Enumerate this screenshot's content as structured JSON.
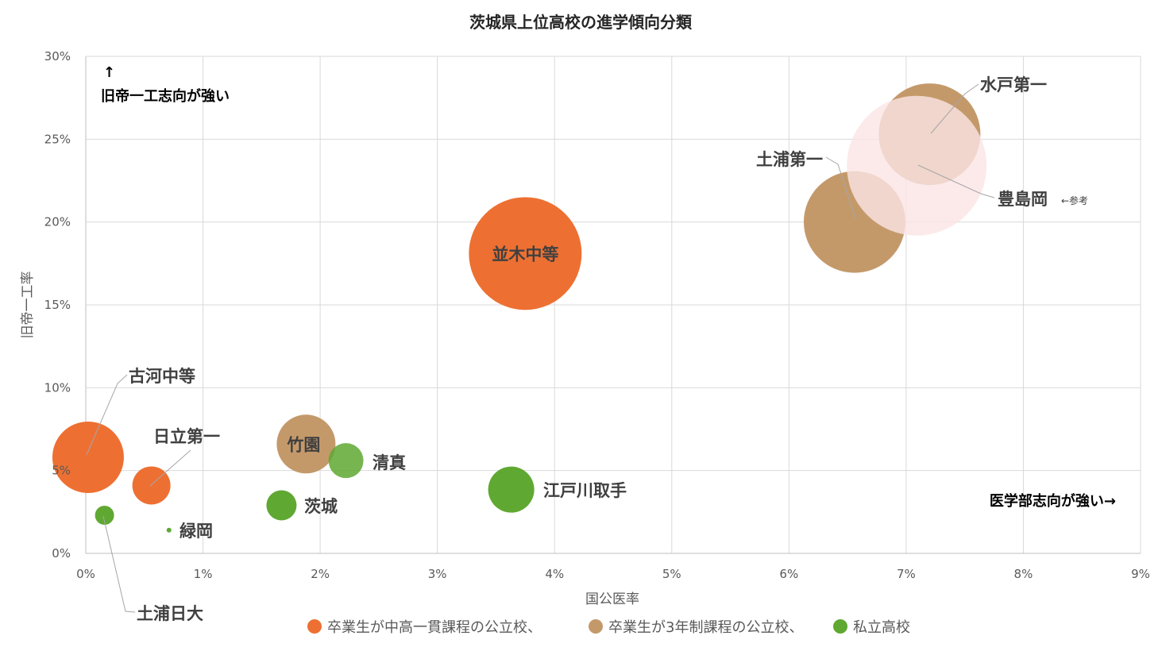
{
  "chart_data": {
    "type": "bubble",
    "title": "茨城県上位高校の進学傾向分類",
    "xlabel": "国公医率",
    "ylabel": "旧帝一工率",
    "xlim": [
      0,
      9
    ],
    "ylim": [
      0,
      30
    ],
    "x_ticks": [
      "0%",
      "1%",
      "2%",
      "3%",
      "4%",
      "5%",
      "6%",
      "7%",
      "8%",
      "9%"
    ],
    "y_ticks": [
      "0%",
      "5%",
      "10%",
      "15%",
      "20%",
      "25%",
      "30%"
    ],
    "grid": true,
    "legend_position": "bottom",
    "series": [
      {
        "name": "卒業生が中高一貫課程の公立校、",
        "color": "#ED7032",
        "points": [
          {
            "label": "並木中等",
            "x": 3.75,
            "y": 18.1,
            "size": 71
          },
          {
            "label": "古河中等",
            "x": 0.02,
            "y": 5.8,
            "size": 45
          },
          {
            "label": "日立第一",
            "x": 0.56,
            "y": 4.1,
            "size": 24
          }
        ]
      },
      {
        "name": "卒業生が3年制課程の公立校、",
        "color": "#C4996A",
        "points": [
          {
            "label": "水戸第一",
            "x": 7.2,
            "y": 25.3,
            "size": 64
          },
          {
            "label": "土浦第一",
            "x": 6.56,
            "y": 20.0,
            "size": 64
          },
          {
            "label": "竹園",
            "x": 1.88,
            "y": 6.6,
            "size": 37
          }
        ]
      },
      {
        "name": "私立高校",
        "color": "#5FA832",
        "points": [
          {
            "label": "清真",
            "x": 2.22,
            "y": 5.6,
            "size": 22
          },
          {
            "label": "江戸川取手",
            "x": 3.63,
            "y": 3.85,
            "size": 29
          },
          {
            "label": "茨城",
            "x": 1.67,
            "y": 2.9,
            "size": 19
          },
          {
            "label": "土浦日大",
            "x": 0.16,
            "y": 2.3,
            "size": 12
          },
          {
            "label": "緑岡",
            "x": 0.71,
            "y": 1.4,
            "size": 3
          }
        ]
      },
      {
        "name": "",
        "color": "#FBE5E6",
        "points": [
          {
            "label": "豊島岡",
            "x": 7.09,
            "y": 23.4,
            "size": 88
          }
        ]
      }
    ],
    "annotations": {
      "top_left_arrow": "↑",
      "top_left_text": "旧帝一工志向が強い",
      "bottom_right_text": "医学部志向が強い→",
      "reference_note": "←参考"
    }
  }
}
